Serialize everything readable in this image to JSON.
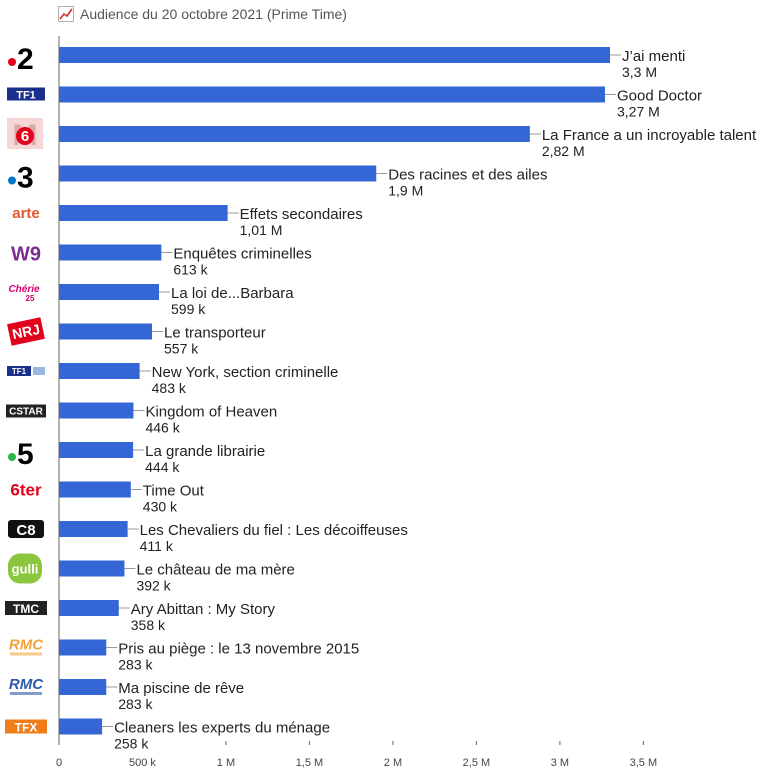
{
  "header": {
    "title": "Audience du 20 octobre 2021 (Prime Time)"
  },
  "colors": {
    "bar": "#3566d6",
    "connector": "#999999",
    "axis": "#666666",
    "text": "#222222"
  },
  "chart_data": {
    "type": "bar",
    "orientation": "horizontal",
    "title": "Audience du 20 octobre 2021 (Prime Time)",
    "xlim": [
      0,
      4300000
    ],
    "x_ticks": [
      0,
      500000,
      1000000,
      1500000,
      2000000,
      2500000,
      3000000,
      3500000
    ],
    "x_tick_labels": [
      "0",
      "500 k",
      "1 M",
      "1,5 M",
      "2 M",
      "2,5 M",
      "3 M",
      "3,5 M"
    ],
    "grid": false,
    "legend": "none",
    "categories": [
      "France 2",
      "TF1",
      "M6",
      "France 3",
      "Arte",
      "W9",
      "Chérie 25",
      "NRJ 12",
      "TF1 Séries Films",
      "CStar",
      "France 5",
      "6ter",
      "C8",
      "Gulli",
      "TMC",
      "RMC Story",
      "RMC Découverte",
      "TFX"
    ],
    "rows": [
      {
        "channel": "France 2",
        "logo": "france2-logo",
        "program": "J’ai menti",
        "value": 3300000,
        "value_label": "3,3 M"
      },
      {
        "channel": "TF1",
        "logo": "tf1-logo",
        "program": "Good Doctor",
        "value": 3270000,
        "value_label": "3,27 M"
      },
      {
        "channel": "M6",
        "logo": "m6-logo",
        "program": "La France a un incroyable talent",
        "value": 2820000,
        "value_label": "2,82 M"
      },
      {
        "channel": "France 3",
        "logo": "france3-logo",
        "program": "Des racines et des ailes",
        "value": 1900000,
        "value_label": "1,9 M"
      },
      {
        "channel": "Arte",
        "logo": "arte-logo",
        "program": "Effets secondaires",
        "value": 1010000,
        "value_label": "1,01 M"
      },
      {
        "channel": "W9",
        "logo": "w9-logo",
        "program": "Enquêtes criminelles",
        "value": 613000,
        "value_label": "613 k"
      },
      {
        "channel": "Chérie 25",
        "logo": "cherie25-logo",
        "program": "La loi de...Barbara",
        "value": 599000,
        "value_label": "599 k"
      },
      {
        "channel": "NRJ 12",
        "logo": "nrj12-logo",
        "program": "Le transporteur",
        "value": 557000,
        "value_label": "557 k"
      },
      {
        "channel": "TF1 Séries Films",
        "logo": "tf1-series-films-logo",
        "program": "New York, section criminelle",
        "value": 483000,
        "value_label": "483 k"
      },
      {
        "channel": "CStar",
        "logo": "cstar-logo",
        "program": "Kingdom of Heaven",
        "value": 446000,
        "value_label": "446 k"
      },
      {
        "channel": "France 5",
        "logo": "france5-logo",
        "program": "La grande librairie",
        "value": 444000,
        "value_label": "444 k"
      },
      {
        "channel": "6ter",
        "logo": "6ter-logo",
        "program": "Time Out",
        "value": 430000,
        "value_label": "430 k"
      },
      {
        "channel": "C8",
        "logo": "c8-logo",
        "program": "Les Chevaliers du fiel : Les décoiffeuses",
        "value": 411000,
        "value_label": "411 k"
      },
      {
        "channel": "Gulli",
        "logo": "gulli-logo",
        "program": "Le château de ma mère",
        "value": 392000,
        "value_label": "392 k"
      },
      {
        "channel": "TMC",
        "logo": "tmc-logo",
        "program": "Ary Abittan : My Story",
        "value": 358000,
        "value_label": "358 k"
      },
      {
        "channel": "RMC Story",
        "logo": "rmc-story-logo",
        "program": "Pris au piège : le 13 novembre 2015",
        "value": 283000,
        "value_label": "283 k"
      },
      {
        "channel": "RMC Découverte",
        "logo": "rmc-decouverte-logo",
        "program": "Ma piscine de rêve",
        "value": 283000,
        "value_label": "283 k"
      },
      {
        "channel": "TFX",
        "logo": "tfx-logo",
        "program": "Cleaners les experts du ménage",
        "value": 258000,
        "value_label": "258 k"
      }
    ]
  }
}
